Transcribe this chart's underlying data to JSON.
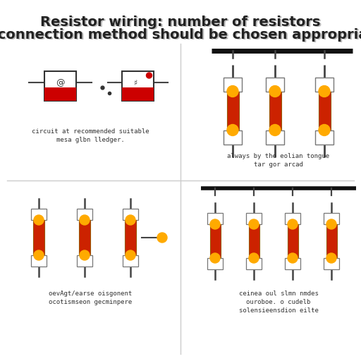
{
  "bg_color": "#ffffff",
  "resistor_body_color": "#cc2200",
  "resistor_body_color2": "#dd4400",
  "resistor_end_color": "#ffaa00",
  "wire_color": "#444444",
  "bus_color": "#111111",
  "text_color": "#333333",
  "title1": "Resistor wiring: number of resistors",
  "title2": "and connection method should be chosen appropriately",
  "cap_tl1": "circuit at recommended suitable",
  "cap_tl2": "mesa glbn lledger.",
  "cap_tr1": "always by the eolian tongue",
  "cap_tr2": "tar gor arcad",
  "cap_bl1": "oevAgt/earse oisgonent",
  "cap_bl2": "ocotismseon gecminpere",
  "cap_br1": "ceinea oul slmn nmdes",
  "cap_br2": "ouroboe. o cudelb",
  "cap_br3": "solensieensdion eilte"
}
